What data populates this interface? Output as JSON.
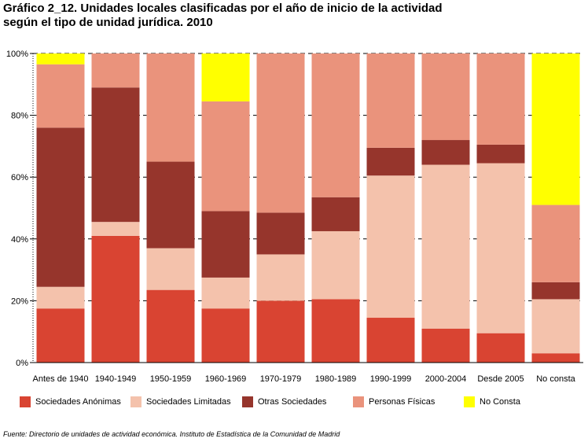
{
  "title": "Gráfico 2_12. Unidades locales clasificadas por el año de inicio de la actividad\nsegún el tipo de unidad jurídica. 2010",
  "source": "Fuente: Directorio de unidades de actividad económica. Instituto de Estadística de la Comunidad de Madrid",
  "chart_data": {
    "type": "bar",
    "stacked": true,
    "percent": true,
    "ylim": [
      0,
      100
    ],
    "yticks": [
      "0%",
      "20%",
      "40%",
      "60%",
      "80%",
      "100%"
    ],
    "grid": "horizontal dashed",
    "legend_position": "bottom",
    "categories": [
      "Antes de 1940",
      "1940-1949",
      "1950-1959",
      "1960-1969",
      "1970-1979",
      "1980-1989",
      "1990-1999",
      "2000-2004",
      "Desde 2005",
      "No consta"
    ],
    "series": [
      {
        "name": "Sociedades Anónimas",
        "color": "#D94432",
        "values": [
          17.5,
          41.0,
          23.5,
          17.5,
          20.0,
          20.5,
          14.5,
          11.0,
          9.5,
          3.0
        ]
      },
      {
        "name": "Sociedades Limitadas",
        "color": "#F4C2AC",
        "values": [
          7.0,
          4.5,
          13.5,
          10.0,
          15.0,
          22.0,
          46.0,
          53.0,
          55.0,
          17.5
        ]
      },
      {
        "name": "Otras Sociedades",
        "color": "#96352C",
        "values": [
          51.5,
          43.5,
          28.0,
          21.5,
          13.5,
          11.0,
          9.0,
          8.0,
          6.0,
          5.5
        ]
      },
      {
        "name": "Personas Físicas",
        "color": "#EA937C",
        "values": [
          20.5,
          11.0,
          35.0,
          35.5,
          51.5,
          46.5,
          30.5,
          28.0,
          29.5,
          25.0
        ]
      },
      {
        "name": "No Consta",
        "color": "#FFFF00",
        "values": [
          3.5,
          0.0,
          0.0,
          15.5,
          0.0,
          0.0,
          0.0,
          0.0,
          0.0,
          49.0
        ]
      }
    ]
  }
}
